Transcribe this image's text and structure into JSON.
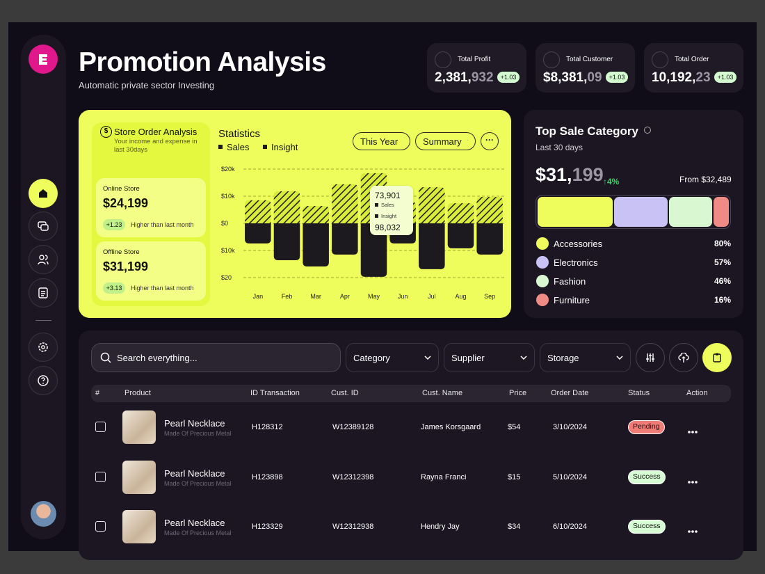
{
  "header": {
    "title": "Promotion Analysis",
    "subtitle": "Automatic private sector Investing"
  },
  "kpis": [
    {
      "label": "Total Profit",
      "value": "2,381,",
      "value_dim": "932",
      "change": "+1.03"
    },
    {
      "label": "Total Customer",
      "value": "$8,381,",
      "value_dim": "09",
      "change": "+1.03"
    },
    {
      "label": "Total Order",
      "value": "10,192,",
      "value_dim": "23",
      "change": "+1.03"
    }
  ],
  "store": {
    "title": "Store Order Analysis",
    "description": "Your income and expense in last 30days",
    "cards": [
      {
        "label": "Online Store",
        "value": "$24,199",
        "change": "+1.23",
        "note": "Higher than last month"
      },
      {
        "label": "Offline Store",
        "value": "$31,199",
        "change": "+3.13",
        "note": "Higher than last month"
      }
    ]
  },
  "statistics": {
    "title": "Statistics",
    "filters": [
      "This Year",
      "Summary"
    ],
    "chart": {
      "type": "bar",
      "categories": [
        "Jan",
        "Feb",
        "Mar",
        "Apr",
        "May",
        "Jun",
        "Jul",
        "Aug",
        "Sep"
      ],
      "series": [
        {
          "name": "Sales",
          "color": "#1c1a1f",
          "values": [
            8.5,
            11.8,
            6.4,
            14.4,
            18.5,
            8,
            13.3,
            7.4,
            9.7
          ]
        },
        {
          "name": "Insight",
          "color": "#1c1a1f",
          "values": [
            -7.4,
            -13.6,
            -15.9,
            -11.5,
            -19.7,
            -7.4,
            -16.9,
            -9.2,
            -11.5
          ]
        }
      ],
      "ylim": [
        -20,
        20
      ],
      "yticks": [
        {
          "value": 20,
          "label": "$20k"
        },
        {
          "value": 10,
          "label": "$10k"
        },
        {
          "value": 0,
          "label": "$0"
        },
        {
          "value": -10,
          "label": "$10k"
        },
        {
          "value": -20,
          "label": "$20"
        }
      ],
      "grid": true
    },
    "tooltip": {
      "sales": "73,901",
      "insight": "98,032"
    }
  },
  "top_sale": {
    "title": "Top Sale Category",
    "period": "Last 30 days",
    "amount": "$31,",
    "amount_dim": "199",
    "growth": "4%",
    "from": "From $32,489",
    "categories": [
      "Accessories",
      "Electronics",
      "Fashion",
      "Furniture"
    ],
    "values": [
      80,
      57,
      46,
      16
    ],
    "value_labels": [
      "80%",
      "57%",
      "46%",
      "16%"
    ],
    "colors": [
      "#eefd5c",
      "#c9c2f5",
      "#d9f7d0",
      "#f08a84"
    ]
  },
  "toolbar": {
    "search": "Search everything...",
    "filters": [
      "Category",
      "Supplier",
      "Storage"
    ]
  },
  "table": {
    "columns": [
      "#",
      "Product",
      "ID Transaction",
      "Cust. ID",
      "Cust. Name",
      "Price",
      "Order Date",
      "Status",
      "Action"
    ],
    "rows": [
      {
        "product": "Pearl Necklace",
        "detail": "Made Of Precious Metal",
        "id": "H128312",
        "cust_id": "W12389128",
        "cust_name": "James Korsgaard",
        "price": "$54",
        "date": "3/10/2024",
        "status": "Pending"
      },
      {
        "product": "Pearl Necklace",
        "detail": "Made Of Precious Metal",
        "id": "H123898",
        "cust_id": "W12312398",
        "cust_name": "Rayna Franci",
        "price": "$15",
        "date": "5/10/2024",
        "status": "Success"
      },
      {
        "product": "Pearl Necklace",
        "detail": "Made Of Precious Metal",
        "id": "H123329",
        "cust_id": "W12312938",
        "cust_name": "Hendry Jay",
        "price": "$34",
        "date": "6/10/2024",
        "status": "Success"
      }
    ]
  }
}
